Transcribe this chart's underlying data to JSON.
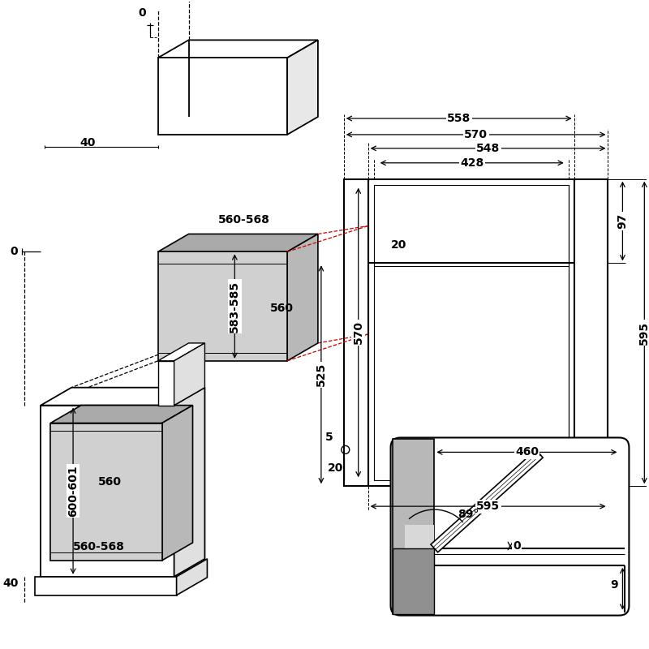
{
  "bg_color": "#ffffff",
  "line_color": "#000000",
  "gray_fill": "#c0c0c0",
  "gray_dark": "#999999",
  "gray_light": "#e0e0e0",
  "red_dashed": "#cc0000",
  "bold_fontsize": 10,
  "dims": {
    "top_0": "0",
    "mid_0": "0",
    "dim_40_top": "40",
    "dim_40_bot": "40",
    "dim_583_585": "583-585",
    "dim_560_568_top": "560-568",
    "dim_560_top": "560",
    "dim_600_601": "600-601",
    "dim_560_mid": "560",
    "dim_560_568_bot": "560-568",
    "dim_570_top": "570",
    "dim_548": "548",
    "dim_558": "558",
    "dim_428": "428",
    "dim_20_top": "20",
    "dim_97": "97",
    "dim_525": "525",
    "dim_570_vert": "570",
    "dim_595_vert": "595",
    "dim_5": "5",
    "dim_20_bot": "20",
    "dim_595_bot": "595",
    "dim_460": "460",
    "dim_89": "89°",
    "dim_0_inset": "0",
    "dim_9": "9"
  }
}
